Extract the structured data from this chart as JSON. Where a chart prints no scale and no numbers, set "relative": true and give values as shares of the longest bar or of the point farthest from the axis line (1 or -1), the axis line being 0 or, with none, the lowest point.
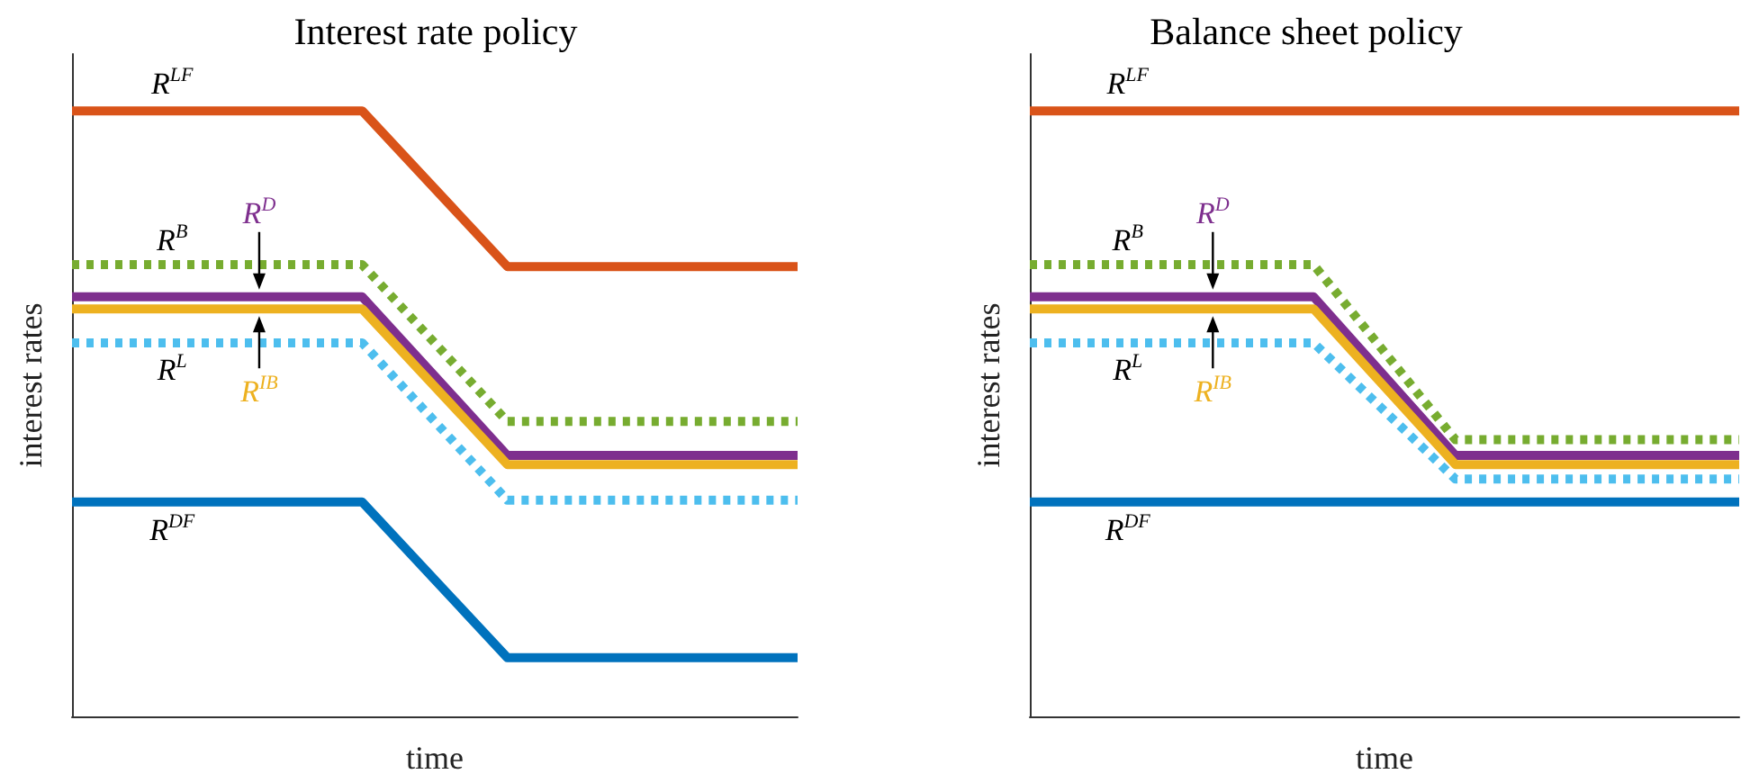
{
  "chart_data": [
    {
      "type": "line",
      "title": "Interest rate policy",
      "xlabel": "time",
      "ylabel": "interest rates",
      "relative": true,
      "legend": false,
      "grid": false,
      "tick_labels": false,
      "categories": [
        null,
        null,
        null,
        null,
        null,
        null
      ],
      "series": [
        {
          "name": "R$^{LF}$",
          "color": "#d95319",
          "line_style": "solid",
          "values": [
            1,
            1,
            1,
            0.743,
            0.743,
            0.743
          ]
        },
        {
          "name": "R$^{B}$",
          "color": "#77ac30",
          "line_style": "dotted",
          "values": [
            0.746,
            0.746,
            0.746,
            0.487,
            0.487,
            0.487
          ]
        },
        {
          "name": "R$^{D}$",
          "color": "#7e2f8e",
          "line_style": "solid",
          "values": [
            0.693,
            0.693,
            0.693,
            0.431,
            0.431,
            0.431
          ]
        },
        {
          "name": "R$^{IB}$",
          "color": "#edb120",
          "line_style": "solid",
          "values": [
            0.673,
            0.673,
            0.673,
            0.416,
            0.416,
            0.416
          ]
        },
        {
          "name": "R$^{L}$",
          "color": "#4dbeee",
          "line_style": "dotted",
          "values": [
            0.617,
            0.617,
            0.617,
            0.357,
            0.357,
            0.357
          ]
        },
        {
          "name": "R$^{DF}$",
          "color": "#0072bd",
          "line_style": "solid",
          "values": [
            0.354,
            0.354,
            0.354,
            0.097,
            0.097,
            0.097
          ]
        }
      ]
    },
    {
      "type": "line",
      "title": "Balance sheet policy",
      "xlabel": "time",
      "ylabel": "interest rates",
      "relative": true,
      "legend": false,
      "grid": false,
      "tick_labels": false,
      "categories": [
        null,
        null,
        null,
        null,
        null,
        null
      ],
      "series": [
        {
          "name": "R$^{LF}$",
          "color": "#d95319",
          "line_style": "solid",
          "values": [
            1,
            1,
            1,
            1,
            1,
            1
          ]
        },
        {
          "name": "R$^{B}$",
          "color": "#77ac30",
          "line_style": "dotted",
          "values": [
            0.746,
            0.746,
            0.746,
            0.457,
            0.457,
            0.457
          ]
        },
        {
          "name": "R$^{D}$",
          "color": "#7e2f8e",
          "line_style": "solid",
          "values": [
            0.693,
            0.693,
            0.693,
            0.431,
            0.431,
            0.431
          ]
        },
        {
          "name": "R$^{IB}$",
          "color": "#edb120",
          "line_style": "solid",
          "values": [
            0.673,
            0.673,
            0.673,
            0.416,
            0.416,
            0.416
          ]
        },
        {
          "name": "R$^{L}$",
          "color": "#4dbeee",
          "line_style": "dotted",
          "values": [
            0.617,
            0.617,
            0.617,
            0.392,
            0.392,
            0.392
          ]
        },
        {
          "name": "R$^{DF}$",
          "color": "#0072bd",
          "line_style": "solid",
          "values": [
            0.354,
            0.354,
            0.354,
            0.354,
            0.354,
            0.354
          ]
        }
      ]
    }
  ]
}
